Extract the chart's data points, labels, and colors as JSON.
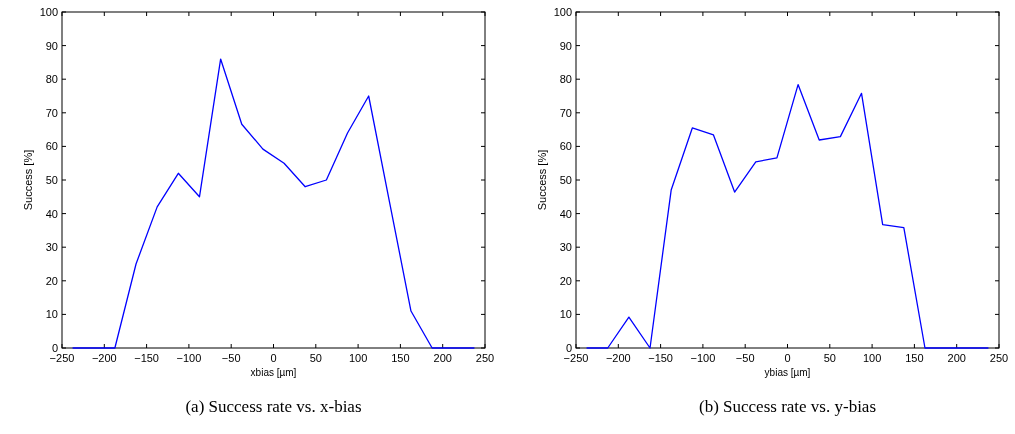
{
  "chart_data": [
    {
      "type": "line",
      "title": "(a) Success rate vs. x-bias",
      "xlabel": "xbias [µm]",
      "ylabel": "Success [%]",
      "x": [
        -237.5,
        -212.5,
        -187.5,
        -162.5,
        -137.5,
        -112.5,
        -87.5,
        -62.5,
        -37.5,
        -12.5,
        12.5,
        37.5,
        62.5,
        87.5,
        112.5,
        137.5,
        162.5,
        187.5,
        212.5,
        237.5
      ],
      "series": [
        {
          "color": "#0000ff",
          "values": [
            0,
            0,
            0,
            25,
            42,
            52,
            45,
            86,
            66.6,
            59.2,
            55,
            48,
            50,
            64,
            75,
            43,
            11,
            0,
            0,
            0
          ]
        }
      ],
      "xlim": [
        -250,
        250
      ],
      "xticks": [
        -250,
        -200,
        -150,
        -100,
        -50,
        0,
        50,
        100,
        150,
        200,
        250
      ],
      "ylim": [
        0,
        100
      ],
      "yticks": [
        0,
        10,
        20,
        30,
        40,
        50,
        60,
        70,
        80,
        90,
        100
      ],
      "grid": false
    },
    {
      "type": "line",
      "title": "(b) Success rate vs. y-bias",
      "xlabel": "ybias [µm]",
      "ylabel": "Success [%]",
      "x": [
        -237.5,
        -212.5,
        -187.5,
        -162.5,
        -137.5,
        -112.5,
        -87.5,
        -62.5,
        -37.5,
        -12.5,
        12.5,
        37.5,
        62.5,
        87.5,
        112.5,
        137.5,
        162.5,
        187.5,
        212.5,
        237.5
      ],
      "series": [
        {
          "color": "#0000ff",
          "values": [
            0,
            0,
            9.2,
            0,
            47,
            65.5,
            63.4,
            46.4,
            55.4,
            56.6,
            78.4,
            61.9,
            62.9,
            75.8,
            36.7,
            35.8,
            0,
            0,
            0,
            0
          ]
        }
      ],
      "xlim": [
        -250,
        250
      ],
      "xticks": [
        -250,
        -200,
        -150,
        -100,
        -50,
        0,
        50,
        100,
        150,
        200,
        250
      ],
      "ylim": [
        0,
        100
      ],
      "yticks": [
        0,
        10,
        20,
        30,
        40,
        50,
        60,
        70,
        80,
        90,
        100
      ],
      "grid": false
    }
  ]
}
